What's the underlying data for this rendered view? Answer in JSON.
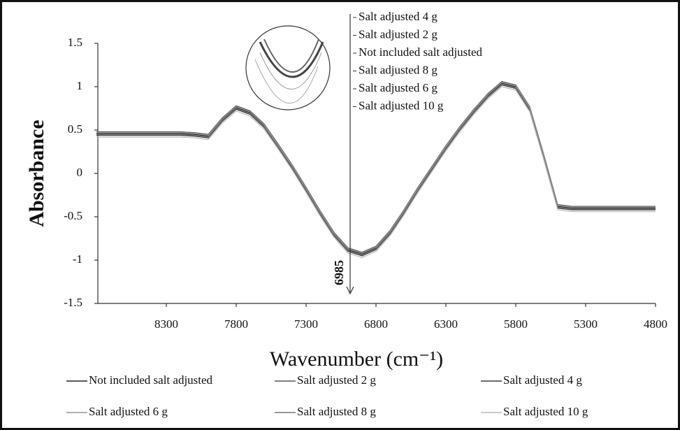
{
  "chart_data": {
    "type": "line",
    "y_label": "Absorbance",
    "x_label": "Wavenumber (cm⁻¹)",
    "x": [
      8800,
      8200,
      8100,
      8000,
      7900,
      7800,
      7700,
      7600,
      7500,
      7400,
      7300,
      7200,
      7100,
      7000,
      6900,
      6800,
      6700,
      6600,
      6500,
      6400,
      6300,
      6200,
      6100,
      6000,
      5900,
      5800,
      5700,
      5600,
      5500,
      5400,
      4800
    ],
    "series": [
      {
        "name": "Not included salt adjusted",
        "color": "#222222",
        "values": [
          0.46,
          0.46,
          0.45,
          0.43,
          0.62,
          0.76,
          0.7,
          0.55,
          0.32,
          0.08,
          -0.18,
          -0.45,
          -0.7,
          -0.88,
          -0.93,
          -0.86,
          -0.68,
          -0.44,
          -0.18,
          0.06,
          0.3,
          0.52,
          0.72,
          0.9,
          1.04,
          1.0,
          0.75,
          0.2,
          -0.38,
          -0.4,
          -0.4
        ]
      },
      {
        "name": "Salt adjusted 2 g",
        "color": "#555555",
        "values": [
          0.48,
          0.48,
          0.47,
          0.45,
          0.64,
          0.78,
          0.72,
          0.57,
          0.34,
          0.1,
          -0.16,
          -0.43,
          -0.68,
          -0.86,
          -0.91,
          -0.84,
          -0.66,
          -0.42,
          -0.16,
          0.08,
          0.32,
          0.54,
          0.74,
          0.92,
          1.06,
          1.02,
          0.77,
          0.22,
          -0.36,
          -0.38,
          -0.38
        ]
      },
      {
        "name": "Salt adjusted 4 g",
        "color": "#3a3a3a",
        "values": [
          0.44,
          0.44,
          0.43,
          0.41,
          0.6,
          0.74,
          0.68,
          0.53,
          0.3,
          0.06,
          -0.2,
          -0.47,
          -0.72,
          -0.9,
          -0.95,
          -0.88,
          -0.7,
          -0.46,
          -0.2,
          0.04,
          0.28,
          0.5,
          0.7,
          0.88,
          1.02,
          0.98,
          0.73,
          0.18,
          -0.4,
          -0.42,
          -0.42
        ]
      },
      {
        "name": "Salt adjusted 6 g",
        "color": "#999999",
        "values": [
          0.47,
          0.47,
          0.46,
          0.44,
          0.63,
          0.77,
          0.71,
          0.56,
          0.33,
          0.09,
          -0.17,
          -0.44,
          -0.69,
          -0.87,
          -0.92,
          -0.85,
          -0.67,
          -0.43,
          -0.17,
          0.07,
          0.31,
          0.53,
          0.73,
          0.91,
          1.05,
          1.01,
          0.76,
          0.21,
          -0.37,
          -0.39,
          -0.39
        ]
      },
      {
        "name": "Salt adjusted 8 g",
        "color": "#777777",
        "values": [
          0.45,
          0.45,
          0.44,
          0.42,
          0.61,
          0.75,
          0.69,
          0.54,
          0.31,
          0.07,
          -0.19,
          -0.46,
          -0.71,
          -0.89,
          -0.94,
          -0.87,
          -0.69,
          -0.45,
          -0.19,
          0.05,
          0.29,
          0.51,
          0.71,
          0.89,
          1.03,
          0.99,
          0.74,
          0.19,
          -0.39,
          -0.41,
          -0.41
        ]
      },
      {
        "name": "Salt adjusted 10 g",
        "color": "#bbbbbb",
        "values": [
          0.42,
          0.42,
          0.41,
          0.39,
          0.58,
          0.72,
          0.66,
          0.51,
          0.28,
          0.04,
          -0.22,
          -0.49,
          -0.74,
          -0.92,
          -0.97,
          -0.9,
          -0.72,
          -0.48,
          -0.22,
          0.02,
          0.26,
          0.48,
          0.68,
          0.86,
          1.0,
          0.96,
          0.71,
          0.16,
          -0.42,
          -0.44,
          -0.44
        ]
      }
    ],
    "xlim": [
      8790,
      4800
    ],
    "xticks": [
      8300,
      7800,
      7300,
      6800,
      6300,
      5800,
      5300,
      4800
    ],
    "ylim": [
      -1.5,
      1.5
    ],
    "yticks": [
      -1.5,
      -1,
      -0.5,
      0,
      0.5,
      1,
      1.5
    ],
    "grid": false,
    "annotation": {
      "text": "6985",
      "x": 6985
    },
    "inset_labels": [
      "Salt adjusted 4 g",
      "Salt adjusted 2 g",
      "Not included salt adjusted",
      "Salt adjusted 8 g",
      "Salt adjusted 6 g",
      "Salt adjusted 10 g"
    ]
  }
}
